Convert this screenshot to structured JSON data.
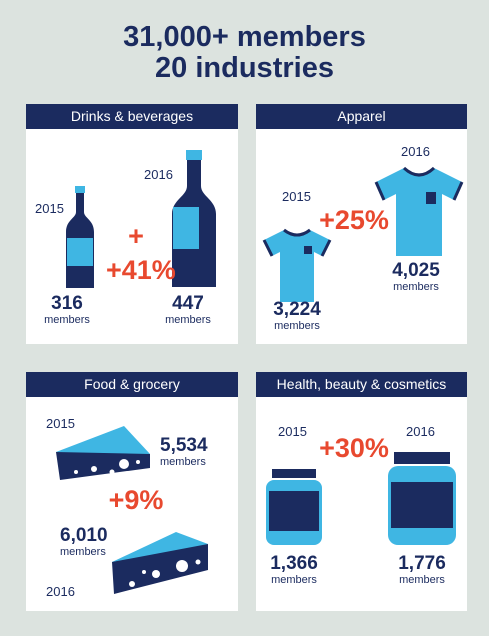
{
  "header": {
    "line1": "31,000+ members",
    "line2": "20 industries"
  },
  "colors": {
    "navy": "#1b2b5f",
    "light_blue": "#3fb6e3",
    "accent_red": "#e8492f",
    "background": "#dce3df"
  },
  "panels": {
    "drinks": {
      "title": "Drinks & beverages",
      "year_a": "2015",
      "year_b": "2016",
      "change": "+41%",
      "count_a": "316",
      "count_b": "447",
      "unit_a": "members",
      "unit_b": "members",
      "icon": "wine-bottle-icon"
    },
    "apparel": {
      "title": "Apparel",
      "year_a": "2015",
      "year_b": "2016",
      "change": "+25%",
      "count_a": "3,224",
      "count_b": "4,025",
      "unit_a": "members",
      "unit_b": "members",
      "icon": "t-shirt-icon"
    },
    "food": {
      "title": "Food & grocery",
      "year_a": "2015",
      "year_b": "2016",
      "change": "+9%",
      "count_a": "5,534",
      "count_b": "6,010",
      "unit_a": "members",
      "unit_b": "members",
      "icon": "cheese-wedge-icon"
    },
    "health": {
      "title": "Health, beauty & cosmetics",
      "year_a": "2015",
      "year_b": "2016",
      "change": "+30%",
      "count_a": "1,366",
      "count_b": "1,776",
      "unit_a": "members",
      "unit_b": "members",
      "icon": "jar-icon"
    }
  }
}
